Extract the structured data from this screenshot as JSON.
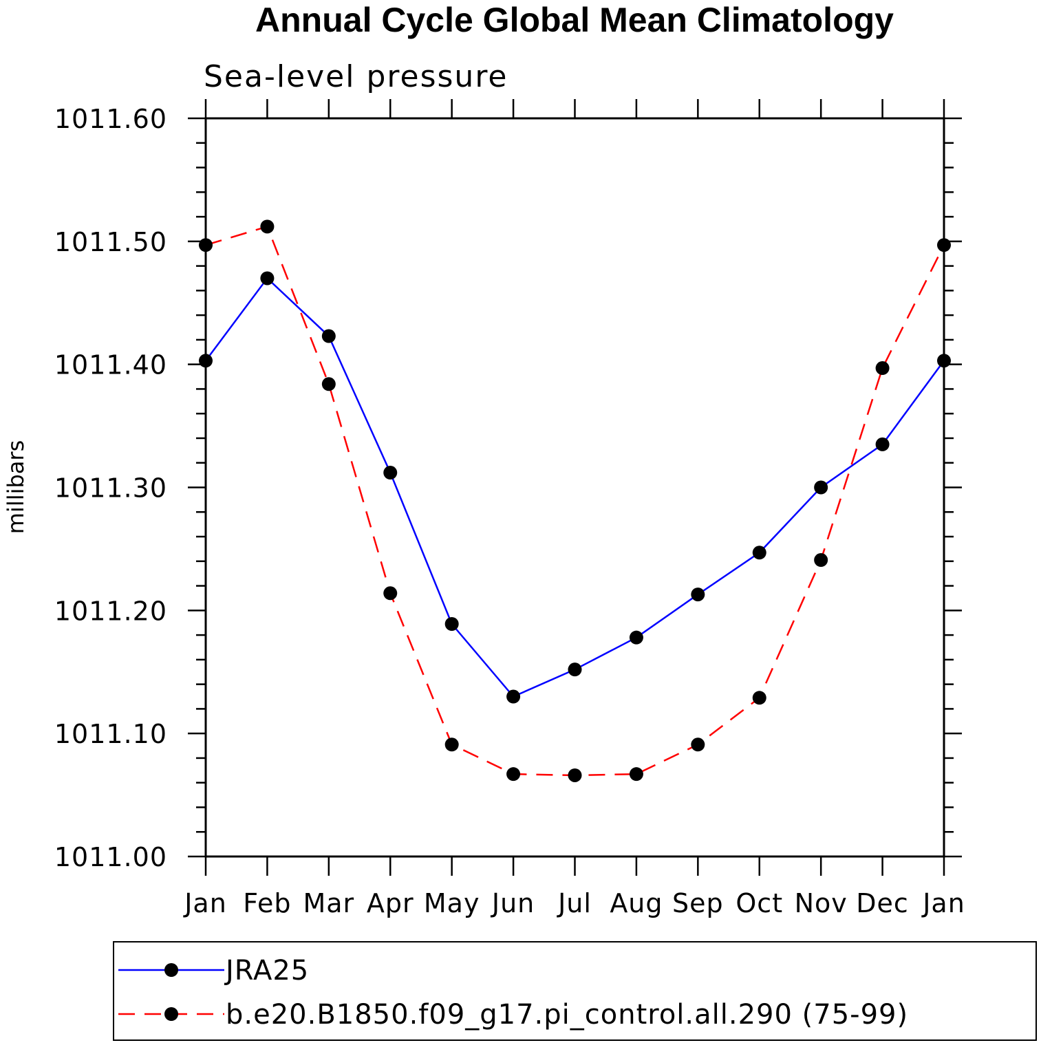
{
  "chart_data": {
    "type": "line",
    "title": "Annual Cycle Global Mean Climatology",
    "subtitle": "Sea-level pressure",
    "xlabel": "",
    "ylabel": "millibars",
    "categories": [
      "Jan",
      "Feb",
      "Mar",
      "Apr",
      "May",
      "Jun",
      "Jul",
      "Aug",
      "Sep",
      "Oct",
      "Nov",
      "Dec",
      "Jan"
    ],
    "ylim": [
      1011.0,
      1011.6
    ],
    "yticks": [
      "1011.00",
      "1011.10",
      "1011.20",
      "1011.30",
      "1011.40",
      "1011.50",
      "1011.60"
    ],
    "grid": false,
    "legend_position": "bottom",
    "series": [
      {
        "name": "JRA25",
        "color": "#0000ff",
        "dash": "solid",
        "marker": "filled-circle",
        "values": [
          1011.403,
          1011.47,
          1011.423,
          1011.312,
          1011.189,
          1011.13,
          1011.152,
          1011.178,
          1011.213,
          1011.247,
          1011.3,
          1011.335,
          1011.403
        ]
      },
      {
        "name": "b.e20.B1850.f09_g17.pi_control.all.290 (75-99)",
        "color": "#ff0000",
        "dash": "dashed",
        "marker": "filled-circle",
        "values": [
          1011.497,
          1011.512,
          1011.384,
          1011.214,
          1011.091,
          1011.067,
          1011.066,
          1011.067,
          1011.091,
          1011.129,
          1011.241,
          1011.397,
          1011.497
        ]
      }
    ]
  }
}
